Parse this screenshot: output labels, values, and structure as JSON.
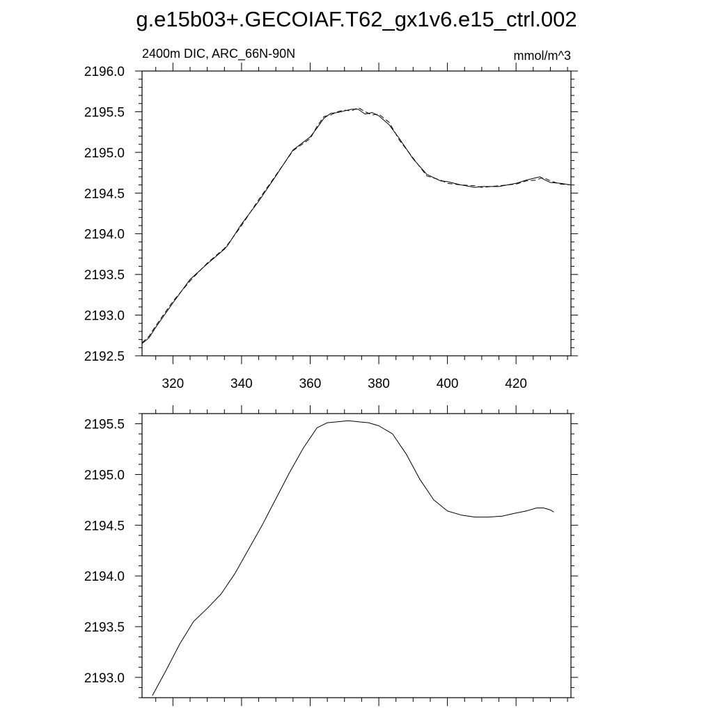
{
  "figure": {
    "title": "g.e15b03+.GECOIAF.T62_gx1v6.e15_ctrl.002",
    "subtitle_left": "2400m DIC, ARC_66N-90N",
    "subtitle_right": "mmol/m^3"
  },
  "chart_data": [
    {
      "type": "line",
      "title": "g.e15b03+.GECOIAF.T62_gx1v6.e15_ctrl.002",
      "subtitle_left": "2400m DIC, ARC_66N-90N",
      "subtitle_right": "mmol/m^3",
      "xlim": [
        311,
        436
      ],
      "ylim": [
        2192.5,
        2196.0
      ],
      "xticks": [
        320,
        340,
        360,
        380,
        400,
        420
      ],
      "xtick_labels": [
        "320",
        "340",
        "360",
        "380",
        "400",
        "420"
      ],
      "yticks": [
        2192.5,
        2193.0,
        2193.5,
        2194.0,
        2194.5,
        2195.0,
        2195.5,
        2196.0
      ],
      "ytick_labels": [
        "2192.5",
        "2193.0",
        "2193.5",
        "2194.0",
        "2194.5",
        "2195.0",
        "2195.5",
        "2196.0"
      ],
      "grid": false,
      "series": [
        {
          "style": "solid",
          "x": [
            311,
            313,
            315,
            320,
            325,
            330,
            335,
            336,
            340,
            345,
            350,
            355,
            360,
            362,
            364,
            366,
            368,
            370,
            372,
            374,
            376,
            378,
            380,
            383,
            386,
            390,
            394,
            398,
            400,
            404,
            408,
            410,
            415,
            420,
            423,
            426,
            427,
            428,
            430,
            433,
            436
          ],
          "y": [
            2192.65,
            2192.72,
            2192.85,
            2193.15,
            2193.44,
            2193.63,
            2193.81,
            2193.86,
            2194.12,
            2194.4,
            2194.71,
            2195.03,
            2195.19,
            2195.3,
            2195.42,
            2195.48,
            2195.49,
            2195.51,
            2195.53,
            2195.53,
            2195.47,
            2195.49,
            2195.45,
            2195.34,
            2195.17,
            2194.92,
            2194.73,
            2194.65,
            2194.64,
            2194.6,
            2194.57,
            2194.58,
            2194.58,
            2194.62,
            2194.66,
            2194.69,
            2194.7,
            2194.67,
            2194.63,
            2194.62,
            2194.6
          ]
        },
        {
          "style": "dashed",
          "x": [
            311,
            313,
            315,
            320,
            325,
            330,
            335,
            336,
            340,
            345,
            350,
            355,
            360,
            362,
            364,
            366,
            368,
            370,
            372,
            374,
            376,
            378,
            380,
            383,
            386,
            390,
            394,
            398,
            400,
            404,
            408,
            410,
            415,
            420,
            423,
            426,
            427,
            428,
            430,
            433,
            436
          ],
          "y": [
            2192.66,
            2192.74,
            2192.87,
            2193.17,
            2193.42,
            2193.64,
            2193.82,
            2193.87,
            2194.1,
            2194.42,
            2194.72,
            2195.02,
            2195.17,
            2195.32,
            2195.44,
            2195.46,
            2195.5,
            2195.52,
            2195.51,
            2195.55,
            2195.5,
            2195.46,
            2195.47,
            2195.37,
            2195.15,
            2194.93,
            2194.71,
            2194.66,
            2194.62,
            2194.6,
            2194.59,
            2194.57,
            2194.59,
            2194.61,
            2194.65,
            2194.66,
            2194.68,
            2194.69,
            2194.65,
            2194.61,
            2194.6
          ]
        }
      ]
    },
    {
      "type": "line",
      "xlim": [
        311,
        436
      ],
      "ylim": [
        2192.8,
        2195.6
      ],
      "xticks": [
        320,
        340,
        360,
        380,
        400,
        420
      ],
      "yticks": [
        2193.0,
        2193.5,
        2194.0,
        2194.5,
        2195.0,
        2195.5
      ],
      "ytick_labels": [
        "2193.0",
        "2193.5",
        "2194.0",
        "2194.5",
        "2195.0",
        "2195.5"
      ],
      "grid": false,
      "series": [
        {
          "style": "solid",
          "x": [
            314,
            318,
            322,
            326,
            330,
            334,
            338,
            342,
            346,
            350,
            354,
            358,
            362,
            365,
            368,
            371,
            374,
            377,
            380,
            384,
            388,
            392,
            396,
            400,
            404,
            408,
            412,
            416,
            420,
            423,
            426,
            428,
            430,
            431
          ],
          "y": [
            2192.82,
            2193.07,
            2193.33,
            2193.55,
            2193.68,
            2193.82,
            2194.02,
            2194.26,
            2194.5,
            2194.76,
            2195.02,
            2195.26,
            2195.46,
            2195.51,
            2195.52,
            2195.53,
            2195.52,
            2195.51,
            2195.48,
            2195.4,
            2195.2,
            2194.95,
            2194.75,
            2194.64,
            2194.6,
            2194.58,
            2194.58,
            2194.59,
            2194.62,
            2194.64,
            2194.67,
            2194.67,
            2194.65,
            2194.63
          ]
        }
      ]
    }
  ]
}
